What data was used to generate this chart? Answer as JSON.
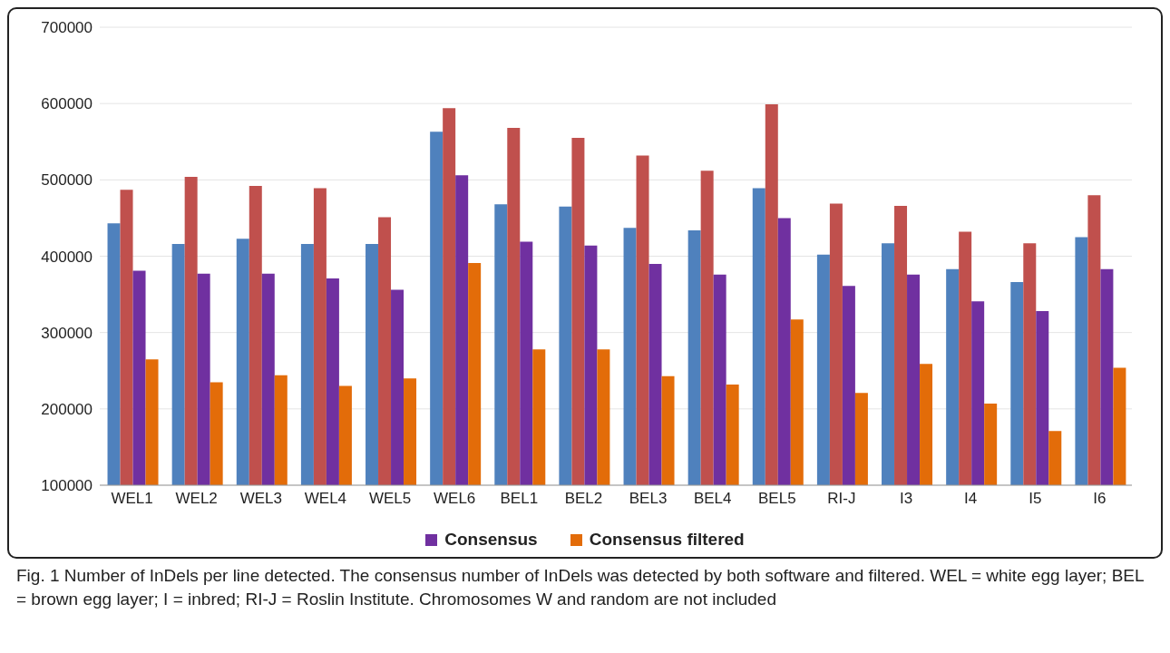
{
  "chart_data": {
    "type": "bar",
    "categories": [
      "WEL1",
      "WEL2",
      "WEL3",
      "WEL4",
      "WEL5",
      "WEL6",
      "BEL1",
      "BEL2",
      "BEL3",
      "BEL4",
      "BEL5",
      "RI-J",
      "I3",
      "I4",
      "I5",
      "I6"
    ],
    "series": [
      {
        "color": "#4f81bd",
        "values": [
          443000,
          416000,
          423000,
          416000,
          416000,
          563000,
          468000,
          465000,
          437000,
          434000,
          489000,
          402000,
          417000,
          383000,
          366000,
          425000
        ]
      },
      {
        "color": "#c0504d",
        "values": [
          487000,
          504000,
          492000,
          489000,
          451000,
          594000,
          568000,
          555000,
          532000,
          512000,
          599000,
          469000,
          466000,
          432000,
          417000,
          480000
        ]
      },
      {
        "name": "Consensus",
        "color": "#7030a0",
        "values": [
          381000,
          377000,
          377000,
          371000,
          356000,
          506000,
          419000,
          414000,
          390000,
          376000,
          450000,
          361000,
          376000,
          341000,
          328000,
          383000
        ]
      },
      {
        "name": "Consensus filtered",
        "color": "#e36c09",
        "values": [
          265000,
          235000,
          244000,
          230000,
          240000,
          391000,
          278000,
          278000,
          243000,
          232000,
          317000,
          221000,
          259000,
          207000,
          171000,
          254000
        ]
      }
    ],
    "ylim": [
      100000,
      700000
    ],
    "yticks": [
      100000,
      200000,
      300000,
      400000,
      500000,
      600000,
      700000
    ],
    "grid": "y",
    "legend": "bottom",
    "annotations": [
      "Fig. 1 Number of InDels per line detected. The consensus number of InDels was detected by both software and filtered. WEL = white egg layer; BEL = brown egg layer; I = inbred; RI-J = Roslin Institute. Chromosomes W and random are not included"
    ]
  }
}
